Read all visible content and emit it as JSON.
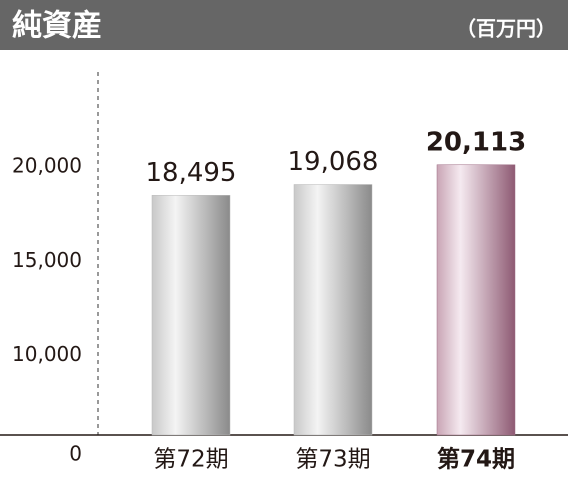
{
  "chart_data": {
    "type": "bar",
    "title": "純資産",
    "unit": "（百万円）",
    "categories": [
      "第72期",
      "第73期",
      "第74期"
    ],
    "values": [
      18495,
      19068,
      20113
    ],
    "value_labels": [
      "18,495",
      "19,068",
      "20,113"
    ],
    "color": "#b8b8b8",
    "highlight_color": "#9c6a82",
    "highlight": 2,
    "ylim": [
      0,
      25000
    ],
    "axis_break": [
      0,
      5800
    ],
    "yticks": [
      0,
      {
        "value": 10000,
        "label": "10,000"
      },
      {
        "value": 15000,
        "label": "15,000"
      },
      {
        "value": 20000,
        "label": "20,000"
      }
    ]
  }
}
